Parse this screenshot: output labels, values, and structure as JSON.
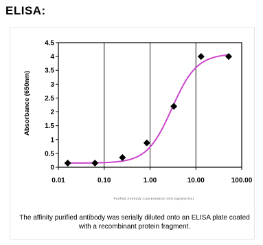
{
  "heading": "ELISA:",
  "caption": "The affinity purified antibody was serially diluted onto an ELISA plate coated with a recombinant protein fragment.",
  "colors": {
    "curve": "#cc44cc",
    "marker": "#000000",
    "grid": "#000000"
  },
  "chart_data": {
    "type": "scatter",
    "title": "",
    "xlabel": "Purified Antibody Concentration (micrograms/mL)",
    "ylabel": "Absorbance (650nm)",
    "xscale": "log",
    "xlim": [
      0.01,
      100
    ],
    "ylim": [
      0,
      4.5
    ],
    "x_ticks": [
      "0.01",
      "0.10",
      "1.00",
      "10.00",
      "100.00"
    ],
    "y_ticks": [
      "0",
      "0.5",
      "1",
      "1.5",
      "2",
      "2.5",
      "3",
      "3.5",
      "4",
      "4.5"
    ],
    "grid": "vertical",
    "series": [
      {
        "markers": "diamond",
        "x": [
          0.016,
          0.063,
          0.25,
          0.85,
          3.3,
          13,
          52
        ],
        "y": [
          0.15,
          0.15,
          0.35,
          0.88,
          2.2,
          4.0,
          4.0
        ]
      }
    ],
    "fit_curve": {
      "bottom": 0.15,
      "top": 4.1,
      "ec50": 3.0,
      "hill": 1.6
    }
  }
}
